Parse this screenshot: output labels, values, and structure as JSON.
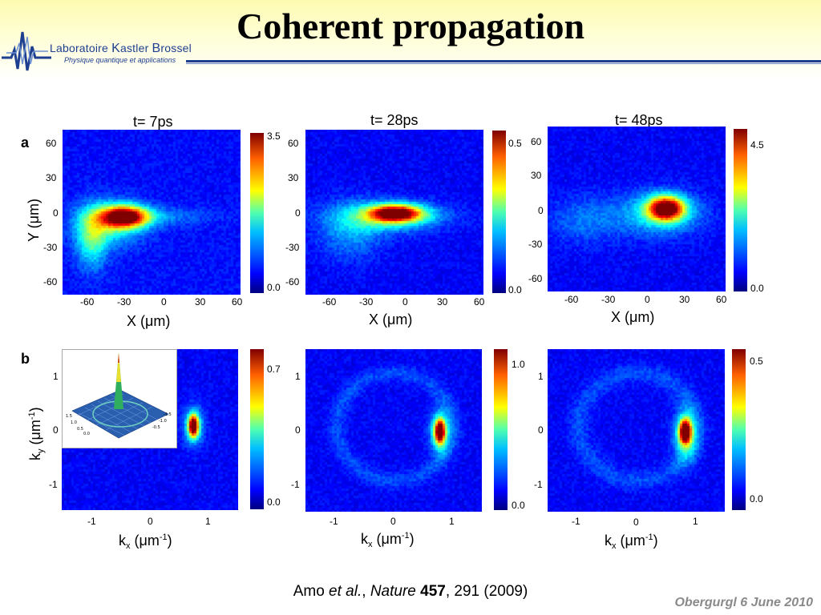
{
  "header": {
    "title": "Coherent propagation",
    "logo_name_1": "Laboratoire",
    "logo_name_2": "K",
    "logo_name_3": "astler ",
    "logo_name_4": "B",
    "logo_name_5": "rossel",
    "logo_subtitle": "Physique quantique et applications",
    "brand_color": "#1e3f8f"
  },
  "row_labels": {
    "a": "a",
    "b": "b"
  },
  "row_a": {
    "titles": [
      "t= 7ps",
      "t= 28ps",
      "t= 48ps"
    ],
    "y_ticks": [
      "60",
      "30",
      "0",
      "-30",
      "-60"
    ],
    "x_ticks": [
      "-60",
      "-30",
      "0",
      "30",
      "60"
    ],
    "y_label": "Y (μm)",
    "x_label": "X (μm)",
    "cbar_max": [
      "3.5",
      "0.5",
      "4.5"
    ],
    "cbar_min": [
      "0.0",
      "0.0",
      "0.0"
    ]
  },
  "row_b": {
    "y_ticks": [
      "1",
      "0",
      "-1"
    ],
    "x_ticks": [
      "-1",
      "0",
      "1"
    ],
    "y_label_base": "k",
    "y_label_sub": "y",
    "y_label_mid": " (μm",
    "y_label_sup": "-1",
    "y_label_end": ")",
    "x_label_base": "k",
    "x_label_sub": "x",
    "x_label_mid": " (μm",
    "x_label_sup": "-1",
    "x_label_end": ")",
    "cbar_max": [
      "0.7",
      "1.0",
      "0.5"
    ],
    "cbar_min": [
      "0.0",
      "0.0",
      "0.0"
    ]
  },
  "inset_ticks": [
    "1.5",
    "1.0",
    "0.5",
    "0.0",
    "-0.5",
    "-1.0",
    "-1.5"
  ],
  "citation": {
    "authors": "Amo ",
    "etal": "et al.",
    "comma1": ", ",
    "journal": "Nature",
    "volume": " 457",
    "rest": ", 291 (2009)"
  },
  "footer": "Obergurgl 6 June 2010",
  "colormap": [
    "#00007f",
    "#0000ff",
    "#007fff",
    "#00ffff",
    "#7fff7f",
    "#ffff00",
    "#ff7f00",
    "#ff0000",
    "#7f0000"
  ]
}
